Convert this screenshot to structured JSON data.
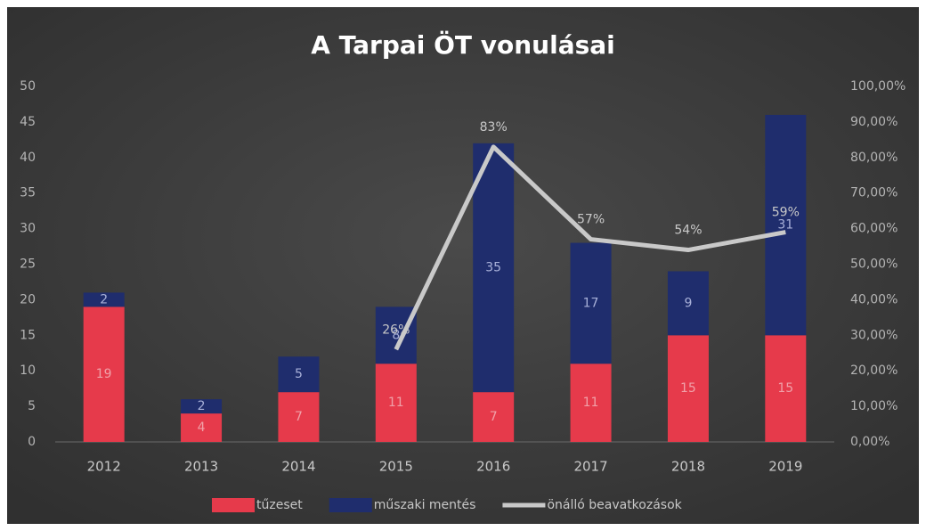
{
  "chart_data": {
    "type": "bar",
    "stacked": true,
    "title": "A Tarpai ÖT vonulásai",
    "categories": [
      "2012",
      "2013",
      "2014",
      "2015",
      "2016",
      "2017",
      "2018",
      "2019"
    ],
    "series": [
      {
        "name": "tűzeset",
        "color": "#e63a4b",
        "values": [
          19,
          4,
          7,
          11,
          7,
          11,
          15,
          15
        ]
      },
      {
        "name": "műszaki mentés",
        "color": "#1f2d6d",
        "values": [
          2,
          2,
          5,
          8,
          35,
          17,
          9,
          31
        ]
      },
      {
        "name": "önálló beavatkozások",
        "type": "line",
        "axis": "y2",
        "color": "#c9c9c9",
        "values": [
          null,
          null,
          null,
          26,
          83,
          57,
          54,
          59
        ],
        "value_labels": [
          null,
          null,
          null,
          "26%",
          "83%",
          "57%",
          "54%",
          "59%"
        ]
      }
    ],
    "ylim": [
      0,
      50
    ],
    "yticks": [
      0,
      5,
      10,
      15,
      20,
      25,
      30,
      35,
      40,
      45,
      50
    ],
    "y2lim": [
      0,
      100
    ],
    "y2ticks": [
      {
        "value": 0,
        "label": "0,00%"
      },
      {
        "value": 10,
        "label": "10,00%"
      },
      {
        "value": 20,
        "label": "20,00%"
      },
      {
        "value": 30,
        "label": "30,00%"
      },
      {
        "value": 40,
        "label": "40,00%"
      },
      {
        "value": 50,
        "label": "50,00%"
      },
      {
        "value": 60,
        "label": "60,00%"
      },
      {
        "value": 70,
        "label": "70,00%"
      },
      {
        "value": 80,
        "label": "80,00%"
      },
      {
        "value": 90,
        "label": "90,00%"
      },
      {
        "value": 100,
        "label": "100,00%"
      }
    ],
    "grid": false,
    "legend": "bottom"
  }
}
